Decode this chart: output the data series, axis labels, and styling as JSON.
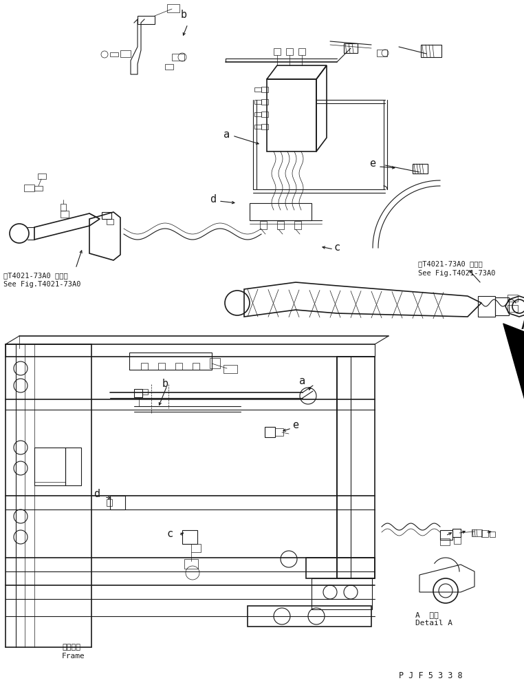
{
  "bg_color": "#ffffff",
  "line_color": "#1a1a1a",
  "figure_width": 7.62,
  "figure_height": 9.92,
  "dpi": 100,
  "ref_upper_jp": "第T4021-73A0 図参照",
  "ref_upper_en": "See Fig.T4021-73A0",
  "ref_right_jp": "第T4021-73A0 図参照",
  "ref_right_en": "See Fig.T4021-73A0",
  "frame_jp": "フレーム",
  "frame_en": "Frame",
  "detail_a_jp": "A  詳細",
  "detail_a_en": "Detail A",
  "part_number": "P J F 5 3 3 8"
}
